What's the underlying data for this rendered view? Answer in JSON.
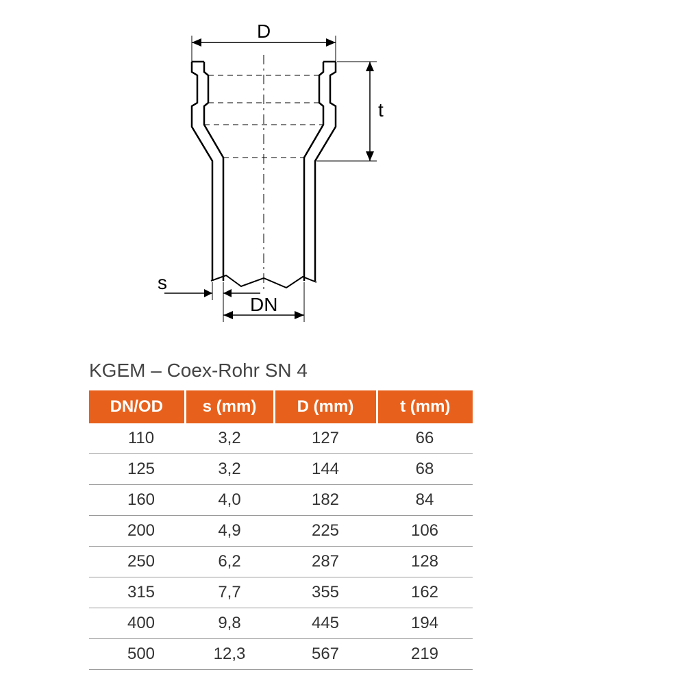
{
  "diagram": {
    "labels": {
      "D": "D",
      "t": "t",
      "s": "s",
      "DN": "DN"
    },
    "stroke_color": "#000000",
    "stroke_width_main": 2.2,
    "stroke_width_thin": 1.0
  },
  "table": {
    "title": "KGEM – Coex-Rohr SN 4",
    "header_bg": "#e8611c",
    "header_fg": "#ffffff",
    "row_border": "#999999",
    "cell_fg": "#333333",
    "title_fg": "#444444",
    "columns": [
      "DN/OD",
      "s (mm)",
      "D (mm)",
      "t (mm)"
    ],
    "col_widths": [
      "140px",
      "130px",
      "150px",
      "140px"
    ],
    "rows": [
      [
        "110",
        "3,2",
        "127",
        "66"
      ],
      [
        "125",
        "3,2",
        "144",
        "68"
      ],
      [
        "160",
        "4,0",
        "182",
        "84"
      ],
      [
        "200",
        "4,9",
        "225",
        "106"
      ],
      [
        "250",
        "6,2",
        "287",
        "128"
      ],
      [
        "315",
        "7,7",
        "355",
        "162"
      ],
      [
        "400",
        "9,8",
        "445",
        "194"
      ],
      [
        "500",
        "12,3",
        "567",
        "219"
      ]
    ]
  }
}
